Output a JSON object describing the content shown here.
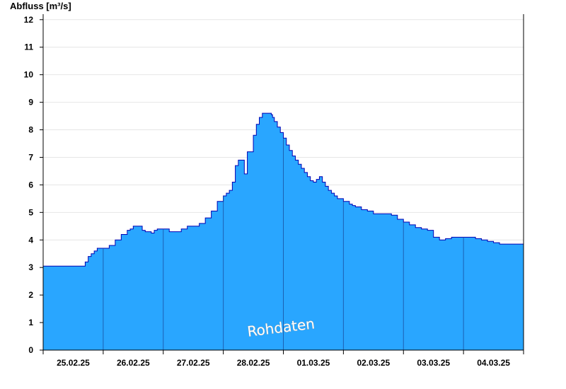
{
  "chart_data": {
    "type": "area",
    "ylabel": "Abfluss [m³/s]",
    "watermark": "Rohdaten",
    "ylim": [
      0,
      12.2
    ],
    "yticks": [
      0,
      1,
      2,
      3,
      4,
      5,
      6,
      7,
      8,
      9,
      10,
      11,
      12
    ],
    "xlim": [
      0,
      8
    ],
    "days": [
      "25.02.25",
      "26.02.25",
      "27.02.25",
      "28.02.25",
      "01.03.25",
      "02.03.25",
      "03.03.25",
      "04.03.25"
    ],
    "grid": true,
    "fill_color": "#29a6ff",
    "line_color": "#0000b4",
    "x": [
      0,
      0.67,
      0.7,
      0.75,
      0.8,
      0.85,
      0.9,
      0.95,
      1.0,
      1.05,
      1.1,
      1.2,
      1.3,
      1.4,
      1.45,
      1.5,
      1.55,
      1.6,
      1.65,
      1.7,
      1.8,
      1.85,
      1.9,
      2.0,
      2.1,
      2.2,
      2.3,
      2.4,
      2.5,
      2.6,
      2.7,
      2.8,
      2.9,
      3.0,
      3.05,
      3.1,
      3.15,
      3.2,
      3.25,
      3.3,
      3.35,
      3.4,
      3.5,
      3.55,
      3.6,
      3.65,
      3.7,
      3.75,
      3.8,
      3.82,
      3.85,
      3.9,
      3.95,
      4.0,
      4.05,
      4.1,
      4.15,
      4.2,
      4.25,
      4.3,
      4.35,
      4.4,
      4.45,
      4.5,
      4.55,
      4.6,
      4.65,
      4.7,
      4.75,
      4.8,
      4.85,
      4.9,
      5.0,
      5.1,
      5.15,
      5.2,
      5.3,
      5.4,
      5.5,
      5.6,
      5.7,
      5.8,
      5.9,
      6.0,
      6.1,
      6.2,
      6.3,
      6.4,
      6.5,
      6.6,
      6.7,
      6.8,
      6.9,
      7.0,
      7.1,
      7.2,
      7.3,
      7.4,
      7.5,
      7.6,
      7.7,
      7.8,
      8.0
    ],
    "y": [
      3.05,
      3.05,
      3.2,
      3.4,
      3.5,
      3.6,
      3.7,
      3.7,
      3.7,
      3.7,
      3.8,
      4.0,
      4.2,
      4.35,
      4.4,
      4.5,
      4.5,
      4.5,
      4.35,
      4.3,
      4.25,
      4.35,
      4.4,
      4.4,
      4.3,
      4.3,
      4.4,
      4.5,
      4.5,
      4.6,
      4.8,
      5.05,
      5.4,
      5.6,
      5.7,
      5.8,
      6.1,
      6.7,
      6.9,
      6.9,
      6.4,
      7.2,
      7.8,
      8.2,
      8.45,
      8.6,
      8.6,
      8.6,
      8.55,
      8.45,
      8.3,
      8.1,
      7.9,
      7.7,
      7.45,
      7.25,
      7.05,
      6.9,
      6.75,
      6.6,
      6.45,
      6.3,
      6.15,
      6.1,
      6.2,
      6.3,
      6.1,
      5.95,
      5.8,
      5.7,
      5.6,
      5.5,
      5.4,
      5.3,
      5.25,
      5.2,
      5.1,
      5.05,
      4.95,
      4.95,
      4.95,
      4.9,
      4.75,
      4.65,
      4.55,
      4.45,
      4.4,
      4.35,
      4.1,
      4.0,
      4.05,
      4.1,
      4.1,
      4.1,
      4.1,
      4.05,
      4.0,
      3.95,
      3.9,
      3.85,
      3.85,
      3.85,
      3.85
    ]
  }
}
